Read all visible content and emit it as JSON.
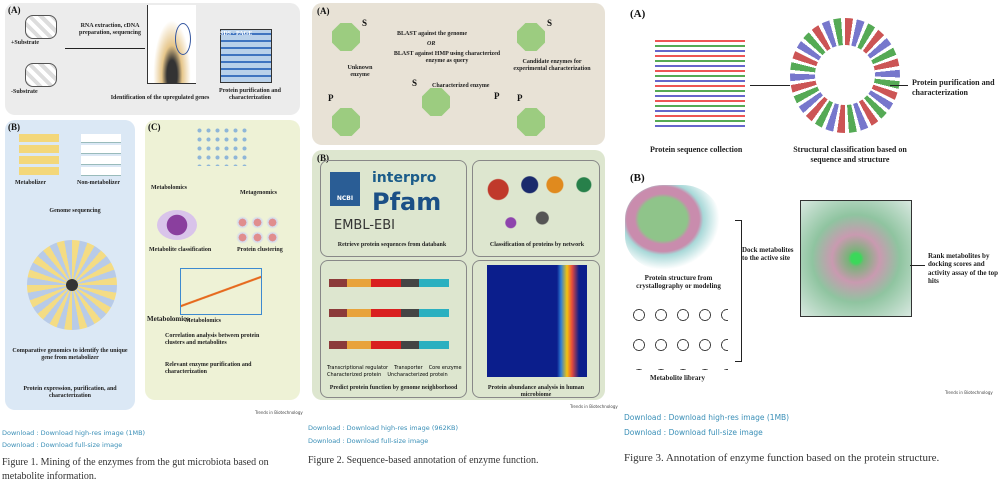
{
  "figures": [
    {
      "panels": {
        "a": {
          "label": "(A)",
          "substrate_plus": "+Substrate",
          "substrate_minus": "-Substrate",
          "step": "RNA extraction, cDNA preparation, sequencing",
          "genes": "Identification of the upregulated genes",
          "gel": "SDS - PAGE",
          "result": "Protein purification and characterization"
        },
        "b": {
          "label": "(B)",
          "metabolizer": "Metabolizer",
          "non_metabolizer": "Non-metabolizer",
          "sequencing": "Genome sequencing",
          "comparative": "Comparative genomics to identify the unique gene from metabolizer",
          "expression": "Protein expression, purification, and characterization"
        },
        "c": {
          "label": "(C)",
          "metabolomics": "Metabolomics",
          "metagenomics": "Metagenomics",
          "classification": "Metabolite classification",
          "clustering": "Protein clustering",
          "axis_y": "Metagenomics",
          "axis_x": "Metabolomics",
          "correlation": "Correlation analysis between protein clusters and metabolites",
          "relevant": "Relevant enzyme purification and characterization"
        }
      },
      "source": "Trends in Biotechnology",
      "download_hires": "Download : Download high-res image (1MB)",
      "download_full": "Download : Download full-size image",
      "caption": "Figure 1. Mining of the enzymes from the gut microbiota based on metabolite information."
    },
    {
      "panels": {
        "a": {
          "label": "(A)",
          "s": "S",
          "p": "P",
          "blast": "BLAST against the genome",
          "or": "OR",
          "blast_hmp": "BLAST against HMP using characterized enzyme as query",
          "unknown": "Unknown enzyme",
          "characterized": "Characterized enzyme",
          "candidate": "Candidate enzymes for experimental characterization"
        },
        "b": {
          "label": "(B)",
          "ncbi": "NCBI",
          "interpro": "interpro",
          "pfam": "Pfam",
          "embl": "EMBL-EBI",
          "retrieve": "Retrieve protein sequences from databank",
          "classification": "Classification of proteins by network",
          "neighborhood": "Predict protein function by genome neighborhood",
          "abundance": "Protein abundance analysis in human microbiome",
          "legend": [
            "Transcriptional regulator",
            "Transporter",
            "Core enzyme",
            "Characterized protein",
            "Uncharacterized protein"
          ]
        }
      },
      "source": "Trends in Biotechnology",
      "download_hires": "Download : Download high-res image (962KB)",
      "download_full": "Download : Download full-size image",
      "caption": "Figure 2. Sequence-based annotation of enzyme function."
    },
    {
      "panels": {
        "a": {
          "label": "(A)",
          "collection": "Protein sequence collection",
          "structural": "Structural classification based on sequence and structure",
          "purification": "Protein purification and characterization"
        },
        "b": {
          "label": "(B)",
          "structure": "Protein structure from crystallography or modeling",
          "dock": "Dock metabolites to the active site",
          "rank": "Rank metabolites by docking scores and activity assay of the top hits",
          "library": "Metabolite library"
        }
      },
      "source": "Trends in Biotechnology",
      "download_hires": "Download : Download high-res image (1MB)",
      "download_full": "Download : Download full-size image",
      "caption": "Figure 3. Annotation of enzyme function based on the protein structure."
    }
  ],
  "colors": {
    "link": "#3a8fb7",
    "fig1_a_bg": "#ececec",
    "fig1_b_bg": "#dbe8f5",
    "fig1_c_bg": "#eef2d6",
    "fig2_a_bg": "#e8e2d6",
    "fig2_b_bg": "#dde6cf",
    "octagon": "#9ccc80"
  }
}
